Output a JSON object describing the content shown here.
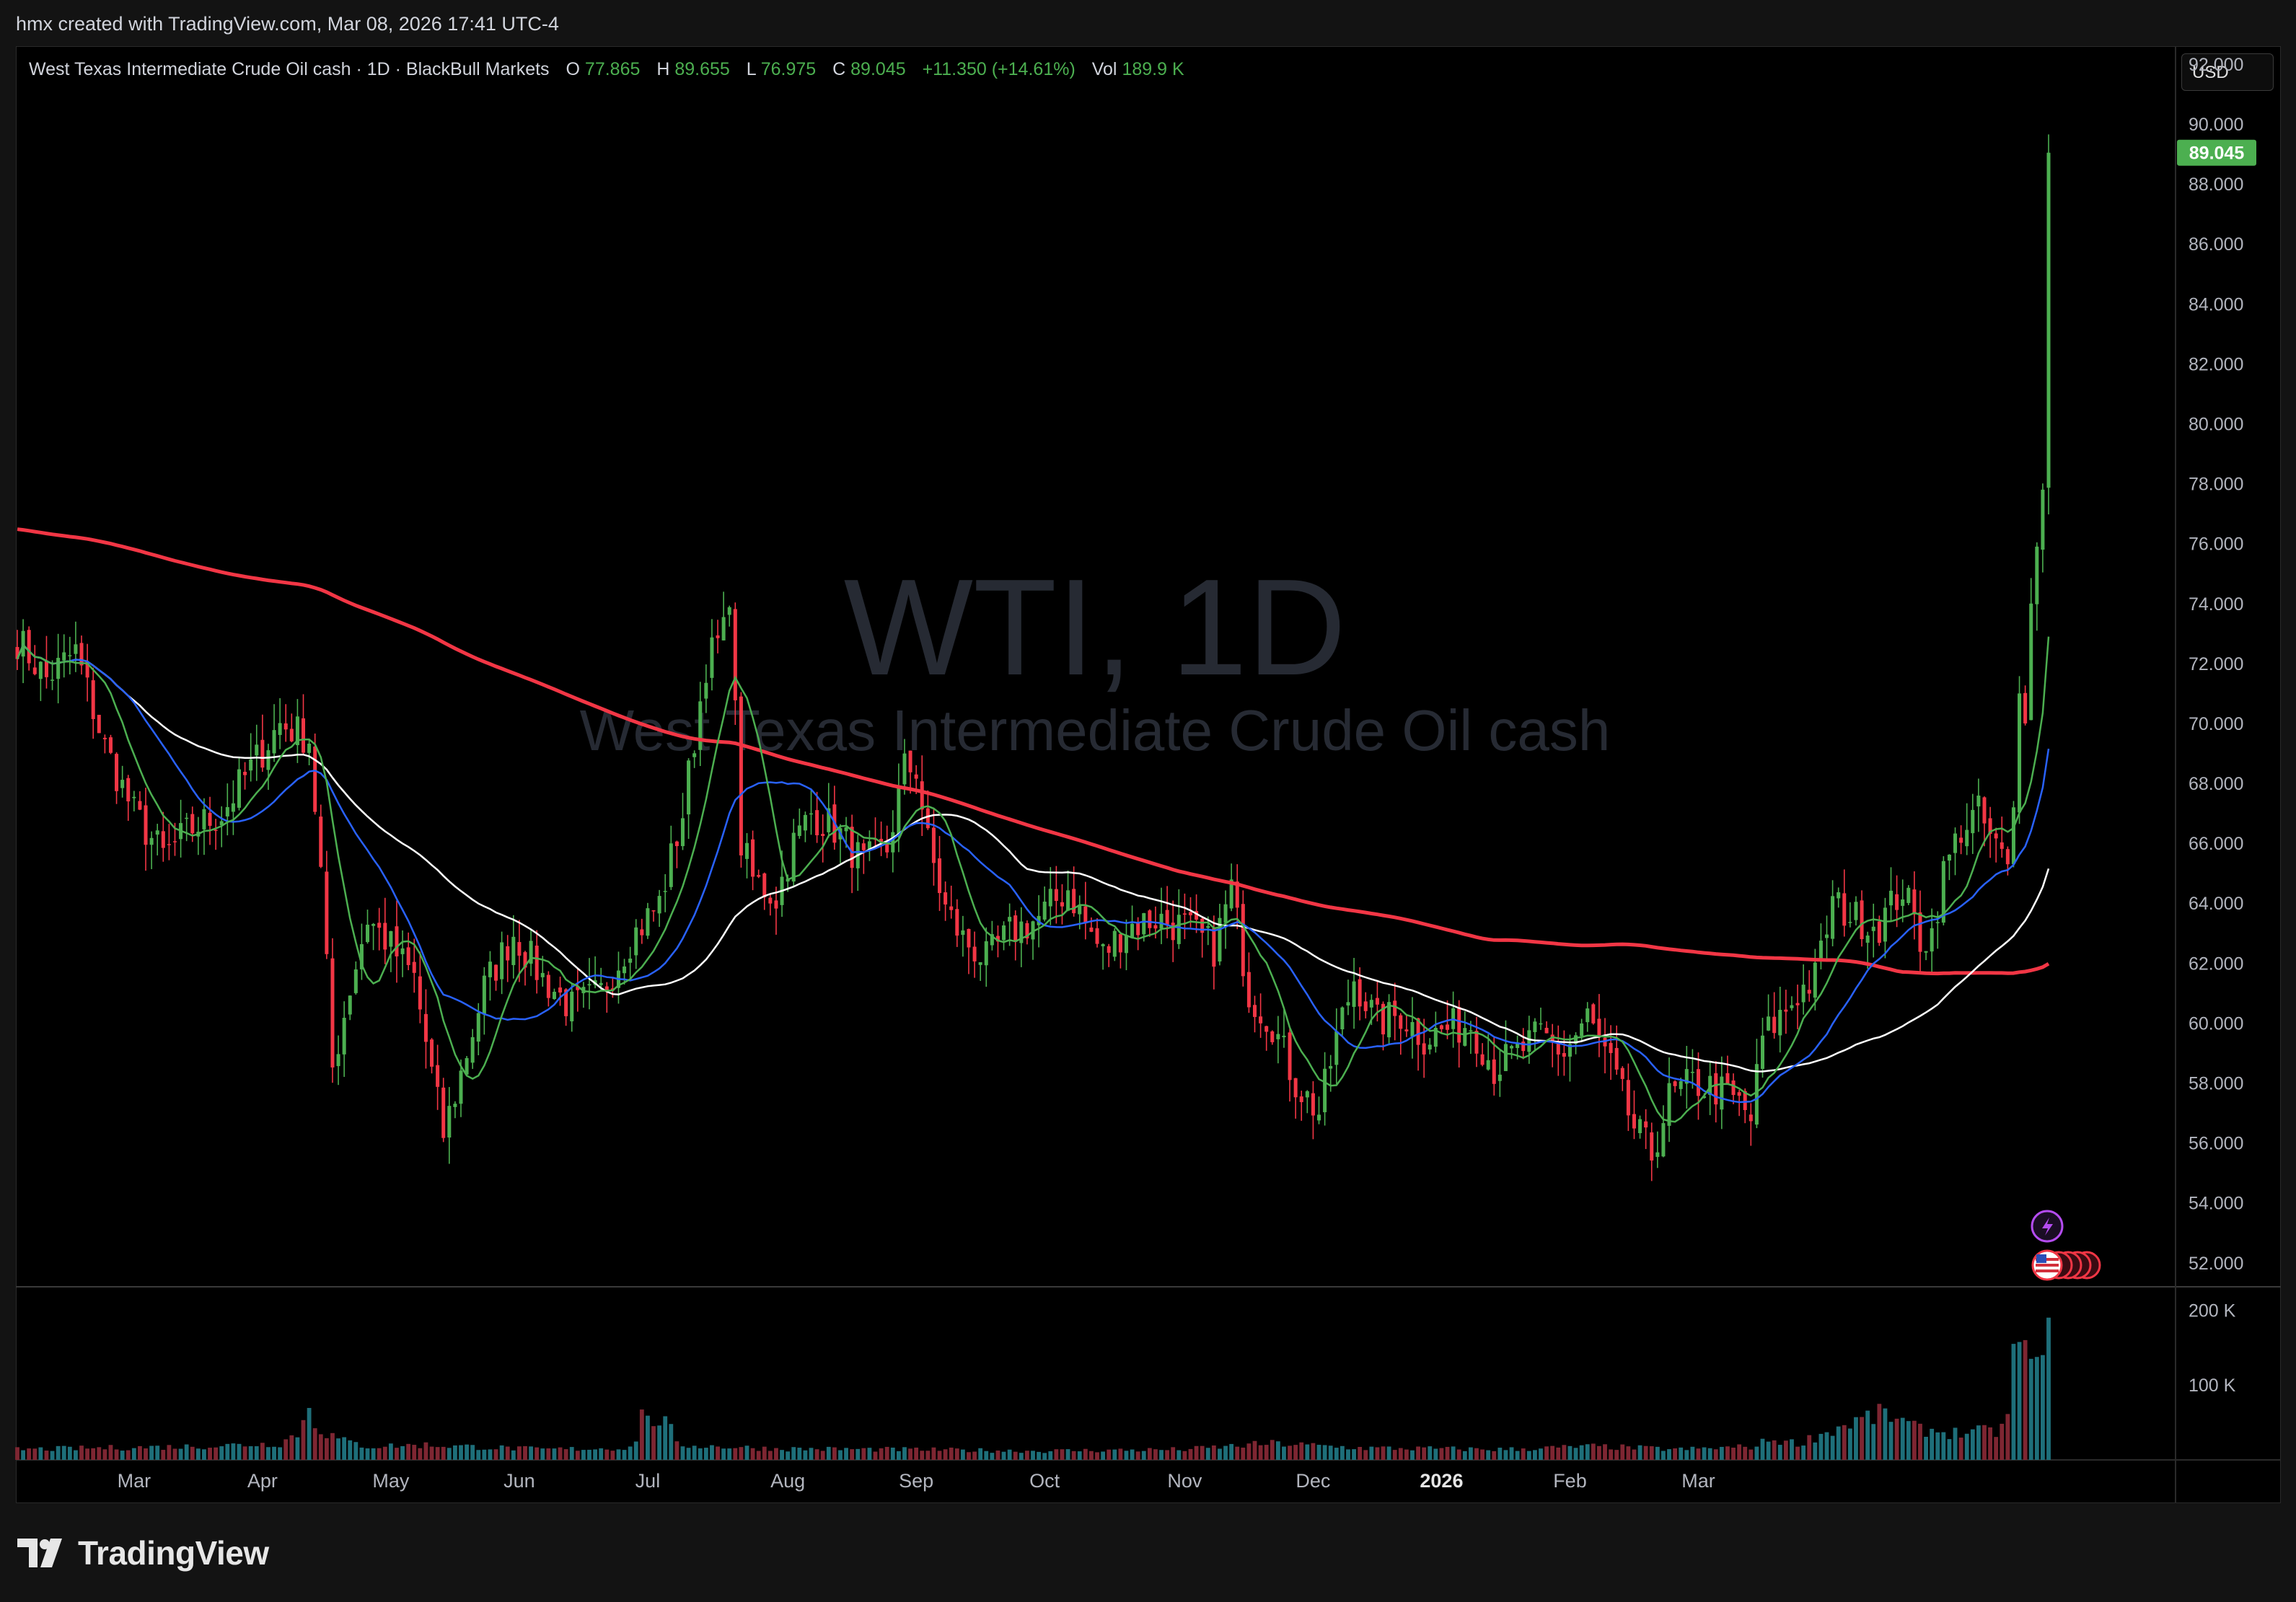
{
  "top_bar": {
    "creator_note": "hmx created with TradingView.com, Mar 08, 2026 17:41 UTC-4"
  },
  "legend": {
    "symbol": "West Texas Intermediate Crude Oil cash · 1D · BlackBull Markets",
    "o_label": "O",
    "o_value": "77.865",
    "h_label": "H",
    "h_value": "89.655",
    "l_label": "L",
    "l_value": "76.975",
    "c_label": "C",
    "c_value": "89.045",
    "change": "+11.350 (+14.61%)",
    "vol_label": "Vol",
    "vol_value": "189.9 K"
  },
  "currency": "USD",
  "watermark": {
    "ticker": "WTI, 1D",
    "name": "West Texas Intermediate Crude Oil cash"
  },
  "footer": {
    "brand": "TradingView"
  },
  "colors": {
    "up": "#4caf50",
    "down": "#f23645",
    "vol_up": "#1e6f7a",
    "vol_down": "#7e2632",
    "ma200": "#f23645",
    "ma50": "#ffffff",
    "ma20": "#2962ff",
    "ma9": "#4caf50",
    "last_price_bg": "#4caf50",
    "background": "#000000",
    "text": "#d1d4dc"
  },
  "chart_data": {
    "type": "candlestick",
    "y_range": [
      51.2,
      92.6
    ],
    "y_ticks": [
      "92.000",
      "90.000",
      "88.000",
      "86.000",
      "84.000",
      "82.000",
      "80.000",
      "78.000",
      "76.000",
      "74.000",
      "72.000",
      "70.000",
      "68.000",
      "66.000",
      "64.000",
      "62.000",
      "60.000",
      "58.000",
      "56.000",
      "54.000",
      "52.000"
    ],
    "last_price": "89.045",
    "volume_ticks": [
      "200 K",
      "100 K"
    ],
    "x_labels": [
      "Mar",
      "Apr",
      "May",
      "Jun",
      "Jul",
      "Aug",
      "Sep",
      "Oct",
      "Nov",
      "Dec",
      "2026",
      "Feb",
      "Mar"
    ],
    "bold_x_label": "2026",
    "close_anchors": [
      [
        0,
        72.8
      ],
      [
        5,
        71.5
      ],
      [
        10,
        72.4
      ],
      [
        15,
        69.2
      ],
      [
        20,
        67.0
      ],
      [
        25,
        65.6
      ],
      [
        30,
        66.5
      ],
      [
        35,
        67.0
      ],
      [
        40,
        68.5
      ],
      [
        45,
        70.0
      ],
      [
        50,
        69.5
      ],
      [
        52,
        65.0
      ],
      [
        54,
        58.5
      ],
      [
        57,
        61.2
      ],
      [
        60,
        63.5
      ],
      [
        63,
        62.8
      ],
      [
        68,
        61.5
      ],
      [
        71,
        58.3
      ],
      [
        73,
        56.3
      ],
      [
        76,
        58.3
      ],
      [
        80,
        61.2
      ],
      [
        85,
        63.0
      ],
      [
        90,
        61.5
      ],
      [
        95,
        60.5
      ],
      [
        100,
        61.0
      ],
      [
        105,
        62.8
      ],
      [
        110,
        64.0
      ],
      [
        114,
        67.0
      ],
      [
        118,
        72.0
      ],
      [
        121,
        73.0
      ],
      [
        122,
        74.5
      ],
      [
        124,
        66.0
      ],
      [
        126,
        64.8
      ],
      [
        130,
        64.2
      ],
      [
        133,
        66.0
      ],
      [
        136,
        67.0
      ],
      [
        140,
        66.5
      ],
      [
        145,
        65.3
      ],
      [
        149,
        65.8
      ],
      [
        152,
        68.5
      ],
      [
        154,
        68.5
      ],
      [
        156,
        66.0
      ],
      [
        159,
        63.8
      ],
      [
        162,
        62.8
      ],
      [
        166,
        62.1
      ],
      [
        170,
        63.0
      ],
      [
        175,
        63.5
      ],
      [
        180,
        64.5
      ],
      [
        183,
        63.3
      ],
      [
        186,
        62.3
      ],
      [
        190,
        63.2
      ],
      [
        195,
        63.5
      ],
      [
        200,
        63.2
      ],
      [
        205,
        62.5
      ],
      [
        208,
        64.5
      ],
      [
        211,
        61.0
      ],
      [
        215,
        60.0
      ],
      [
        219,
        58.0
      ],
      [
        223,
        57.0
      ],
      [
        226,
        59.5
      ],
      [
        229,
        61.5
      ],
      [
        233,
        60.0
      ],
      [
        237,
        60.3
      ],
      [
        241,
        59.5
      ],
      [
        245,
        59.8
      ],
      [
        249,
        60.0
      ],
      [
        253,
        58.5
      ],
      [
        257,
        59.0
      ],
      [
        261,
        59.6
      ],
      [
        265,
        59.0
      ],
      [
        269,
        60.2
      ],
      [
        273,
        58.5
      ],
      [
        277,
        56.5
      ],
      [
        280,
        55.6
      ],
      [
        283,
        57.5
      ],
      [
        287,
        58.0
      ],
      [
        291,
        57.8
      ],
      [
        295,
        57.3
      ],
      [
        297,
        56.8
      ],
      [
        299,
        59.5
      ],
      [
        302,
        60.2
      ],
      [
        305,
        61.0
      ],
      [
        308,
        61.5
      ],
      [
        311,
        64.0
      ],
      [
        315,
        63.5
      ],
      [
        319,
        63.3
      ],
      [
        323,
        64.5
      ],
      [
        326,
        62.8
      ],
      [
        328,
        63.0
      ],
      [
        330,
        65.0
      ],
      [
        333,
        66.5
      ],
      [
        336,
        67.0
      ],
      [
        339,
        65.8
      ],
      [
        341,
        65.3
      ],
      [
        342,
        67.2
      ],
      [
        343,
        71.0
      ],
      [
        344,
        70.0
      ],
      [
        345,
        74.0
      ],
      [
        347,
        77.8
      ],
      [
        348,
        89.045
      ]
    ],
    "volume_anchors": [
      [
        0,
        14
      ],
      [
        30,
        18
      ],
      [
        45,
        22
      ],
      [
        48,
        36
      ],
      [
        49,
        50
      ],
      [
        50,
        72
      ],
      [
        51,
        50
      ],
      [
        53,
        35
      ],
      [
        56,
        25
      ],
      [
        60,
        18
      ],
      [
        70,
        20
      ],
      [
        90,
        14
      ],
      [
        105,
        16
      ],
      [
        106,
        30
      ],
      [
        107,
        68
      ],
      [
        108,
        50
      ],
      [
        110,
        55
      ],
      [
        112,
        40
      ],
      [
        113,
        20
      ],
      [
        130,
        15
      ],
      [
        150,
        14
      ],
      [
        175,
        12
      ],
      [
        200,
        14
      ],
      [
        215,
        22
      ],
      [
        230,
        16
      ],
      [
        255,
        14
      ],
      [
        270,
        18
      ],
      [
        285,
        14
      ],
      [
        298,
        18
      ],
      [
        300,
        28
      ],
      [
        305,
        22
      ],
      [
        315,
        52
      ],
      [
        320,
        62
      ],
      [
        325,
        42
      ],
      [
        332,
        36
      ],
      [
        339,
        38
      ],
      [
        341,
        52
      ],
      [
        342,
        155
      ],
      [
        344,
        160
      ],
      [
        345,
        135
      ],
      [
        347,
        140
      ],
      [
        348,
        190
      ]
    ],
    "moving_averages": [
      "200",
      "50",
      "20",
      "9"
    ]
  }
}
